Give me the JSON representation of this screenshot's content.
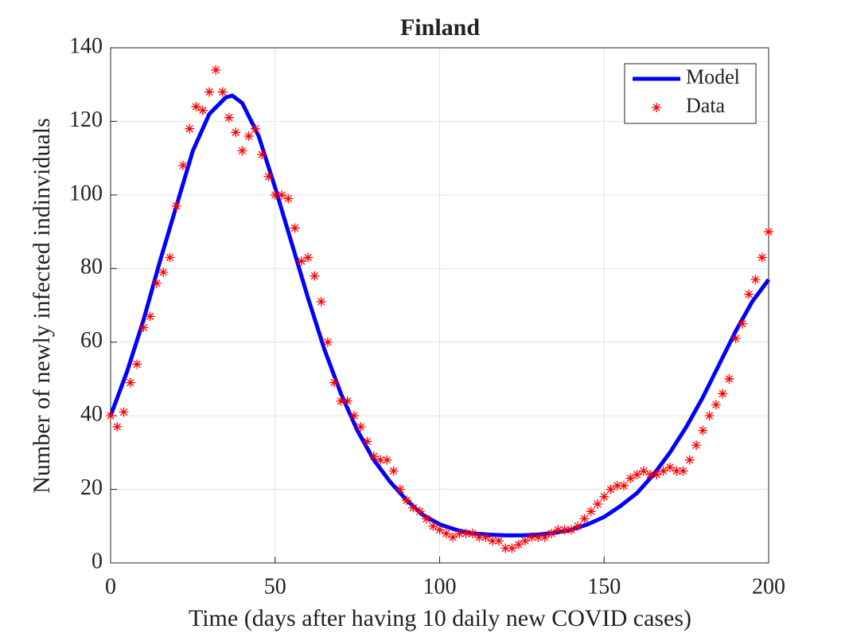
{
  "chart_data": {
    "type": "line",
    "title": "Finland",
    "xlabel": "Time (days after having 10 daily new COVID cases)",
    "ylabel": "Number of newly infected indinviduals",
    "xlim": [
      0,
      200
    ],
    "ylim": [
      0,
      140
    ],
    "xticks": [
      0,
      50,
      100,
      150,
      200
    ],
    "yticks": [
      0,
      20,
      40,
      60,
      80,
      100,
      120,
      140
    ],
    "grid": true,
    "legend": "upper right",
    "series": [
      {
        "name": "Model",
        "color": "#0000ff",
        "mode": "line",
        "x": [
          0,
          5,
          10,
          15,
          20,
          25,
          30,
          35,
          37,
          40,
          45,
          50,
          55,
          60,
          65,
          70,
          75,
          80,
          85,
          90,
          95,
          100,
          105,
          110,
          115,
          120,
          125,
          130,
          135,
          140,
          145,
          150,
          155,
          160,
          165,
          170,
          175,
          180,
          185,
          190,
          195,
          200
        ],
        "values": [
          40,
          52,
          66,
          82,
          97,
          112,
          122,
          126.5,
          127,
          125,
          116,
          102,
          87,
          72,
          58,
          46,
          36,
          28,
          22,
          17,
          13,
          10.5,
          9,
          8,
          7.7,
          7.5,
          7.5,
          7.7,
          8.2,
          9,
          10.5,
          12.5,
          15.5,
          19,
          24,
          30,
          37,
          45,
          54,
          63,
          71,
          77
        ]
      },
      {
        "name": "Data",
        "color": "#ff0000",
        "mode": "markers",
        "x": [
          0,
          2,
          4,
          6,
          8,
          10,
          12,
          14,
          16,
          18,
          20,
          22,
          24,
          26,
          28,
          30,
          32,
          34,
          36,
          38,
          40,
          42,
          44,
          46,
          48,
          50,
          52,
          54,
          56,
          58,
          60,
          62,
          64,
          66,
          68,
          70,
          72,
          74,
          76,
          78,
          80,
          82,
          84,
          86,
          88,
          90,
          92,
          94,
          96,
          98,
          100,
          102,
          104,
          106,
          108,
          110,
          112,
          114,
          116,
          118,
          120,
          122,
          124,
          126,
          128,
          130,
          132,
          134,
          136,
          138,
          140,
          142,
          144,
          146,
          148,
          150,
          152,
          154,
          156,
          158,
          160,
          162,
          164,
          166,
          168,
          170,
          172,
          174,
          176,
          178,
          180,
          182,
          184,
          186,
          188,
          190,
          192,
          194,
          196,
          198,
          200
        ],
        "values": [
          40,
          37,
          41,
          49,
          54,
          64,
          67,
          76,
          79,
          83,
          97,
          108,
          118,
          124,
          123,
          128,
          134,
          128,
          121,
          117,
          112,
          116,
          118,
          111,
          105,
          100,
          100,
          99,
          91,
          82,
          83,
          78,
          71,
          60,
          49,
          44,
          44,
          40,
          37,
          33,
          29,
          28,
          28,
          25,
          20,
          17,
          15,
          14,
          12,
          10,
          9,
          8,
          7,
          8,
          8,
          8,
          7,
          7,
          6,
          6,
          4,
          4,
          5,
          6,
          7,
          7,
          7,
          8,
          9,
          9,
          9,
          10,
          12,
          14,
          16,
          18,
          20,
          21,
          21,
          23,
          24,
          25,
          24,
          24,
          25,
          26,
          25,
          25,
          28,
          32,
          36,
          40,
          43,
          46,
          50,
          61,
          65,
          73,
          77,
          83,
          90
        ]
      }
    ]
  }
}
